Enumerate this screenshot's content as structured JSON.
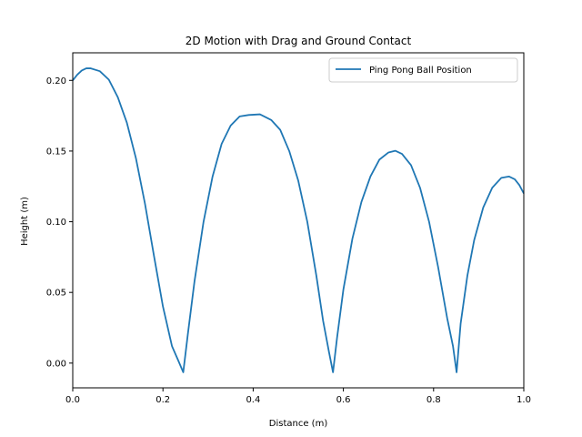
{
  "chart_data": {
    "type": "line",
    "title": "2D Motion with Drag and Ground Contact",
    "xlabel": "Distance (m)",
    "ylabel": "Height (m)",
    "xlim": [
      0.0,
      1.0
    ],
    "ylim": [
      -0.0175,
      0.2195
    ],
    "grid": false,
    "legend_position": "top-right",
    "xticks": [
      "0.0",
      "0.2",
      "0.4",
      "0.6",
      "0.8",
      "1.0"
    ],
    "yticks": [
      "0.00",
      "0.05",
      "0.10",
      "0.15",
      "0.20"
    ],
    "series": [
      {
        "name": "Ping Pong Ball Position",
        "color": "#1f77b4",
        "x": [
          0.0,
          0.01,
          0.02,
          0.03,
          0.04,
          0.06,
          0.08,
          0.1,
          0.12,
          0.14,
          0.16,
          0.18,
          0.2,
          0.22,
          0.235,
          0.245,
          0.255,
          0.27,
          0.29,
          0.31,
          0.33,
          0.35,
          0.37,
          0.39,
          0.415,
          0.44,
          0.46,
          0.48,
          0.5,
          0.52,
          0.54,
          0.555,
          0.568,
          0.577,
          0.586,
          0.6,
          0.62,
          0.64,
          0.66,
          0.68,
          0.7,
          0.715,
          0.73,
          0.75,
          0.77,
          0.79,
          0.81,
          0.83,
          0.843,
          0.851,
          0.86,
          0.875,
          0.89,
          0.91,
          0.93,
          0.95,
          0.967,
          0.98,
          0.99,
          1.0
        ],
        "y": [
          0.2,
          0.204,
          0.207,
          0.2085,
          0.2085,
          0.2065,
          0.2005,
          0.188,
          0.17,
          0.145,
          0.113,
          0.076,
          0.04,
          0.012,
          0.001,
          -0.0065,
          0.02,
          0.058,
          0.1,
          0.132,
          0.155,
          0.168,
          0.1745,
          0.1755,
          0.176,
          0.172,
          0.165,
          0.15,
          0.129,
          0.1,
          0.062,
          0.03,
          0.008,
          -0.0065,
          0.018,
          0.052,
          0.088,
          0.114,
          0.132,
          0.144,
          0.149,
          0.1502,
          0.148,
          0.14,
          0.124,
          0.1,
          0.068,
          0.032,
          0.012,
          -0.0065,
          0.028,
          0.062,
          0.087,
          0.11,
          0.124,
          0.131,
          0.132,
          0.13,
          0.126,
          0.12
        ]
      }
    ]
  }
}
